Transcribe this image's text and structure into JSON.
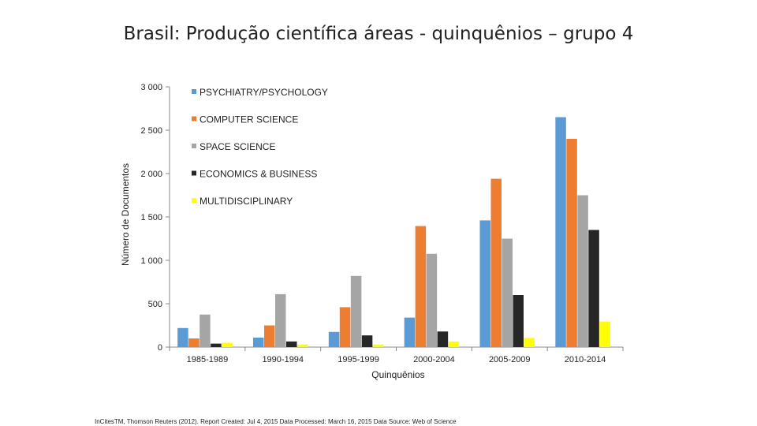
{
  "slide_title": "Brasil: Produção científica áreas - quinquênios – grupo 4",
  "footer": "InCitesTM, Thomson Reuters (2012). Report Created: Jul 4, 2015 Data Processed: March 16, 2015 Data Source: Web of Science",
  "chart_data": {
    "type": "bar",
    "title": "",
    "xlabel": "Quinquênios",
    "ylabel": "Número de Documentos",
    "ylim": [
      0,
      3000
    ],
    "yticks": [
      0,
      500,
      1000,
      1500,
      2000,
      2500,
      3000
    ],
    "ytick_labels": [
      "0",
      "500",
      "1 000",
      "1 500",
      "2 000",
      "2 500",
      "3 000"
    ],
    "categories": [
      "1985-1989",
      "1990-1994",
      "1995-1999",
      "2000-2004",
      "2005-2009",
      "2010-2014"
    ],
    "legend_position": "top-left",
    "grid": false,
    "series": [
      {
        "name": "PSYCHIATRY/PSYCHOLOGY",
        "color": "#5B9BD5",
        "values": [
          220,
          110,
          175,
          340,
          1460,
          2650
        ]
      },
      {
        "name": "COMPUTER SCIENCE",
        "color": "#ED7D31",
        "values": [
          100,
          250,
          460,
          1395,
          1940,
          2400
        ]
      },
      {
        "name": "SPACE SCIENCE",
        "color": "#A5A5A5",
        "values": [
          375,
          610,
          820,
          1075,
          1250,
          1750
        ]
      },
      {
        "name": "ECONOMICS & BUSINESS",
        "color": "#262626",
        "values": [
          40,
          65,
          135,
          180,
          600,
          1350
        ]
      },
      {
        "name": "MULTIDISCIPLINARY",
        "color": "#FFFF00",
        "values": [
          50,
          30,
          30,
          65,
          105,
          295
        ]
      }
    ]
  }
}
